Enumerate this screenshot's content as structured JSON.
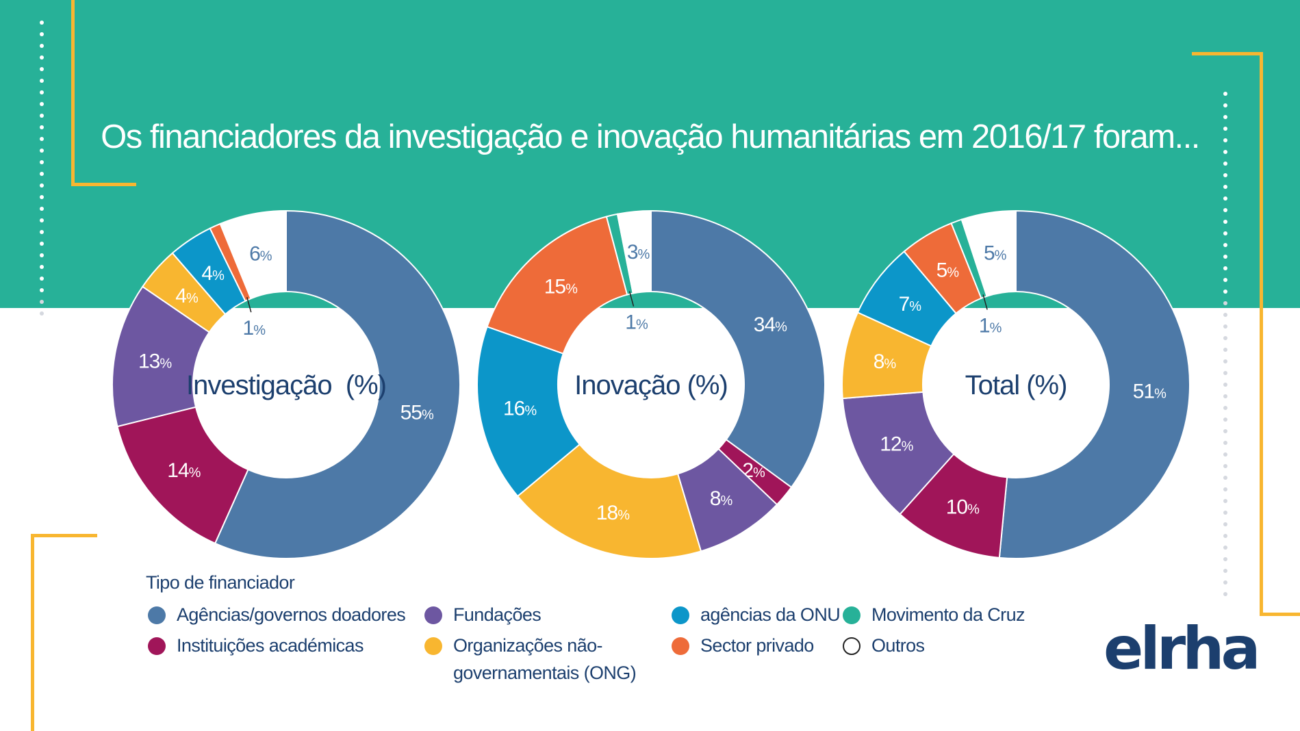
{
  "title": "Os financiadores da investigação e inovação humanitárias em 2016/17 foram...",
  "colors": {
    "banner": "#27b198",
    "accent_yellow": "#f8b630",
    "text_navy": "#1c3f6e"
  },
  "legend": {
    "title": "Tipo de financiador",
    "items": [
      {
        "label": "Agências/governos doadores",
        "color": "#4d79a7"
      },
      {
        "label": "Fundações",
        "color": "#6d57a1"
      },
      {
        "label": "agências da ONU",
        "color": "#0c96c9"
      },
      {
        "label": "Movimento da Cruz",
        "color": "#27b198"
      },
      {
        "label": "Instituições académicas",
        "color": "#a01559"
      },
      {
        "label": "Organizações não-",
        "label_line2": "governamentais (ONG)",
        "color": "#f8b630"
      },
      {
        "label": "Sector privado",
        "color": "#ee6b39"
      },
      {
        "label": "Outros",
        "color": "#ffffff"
      }
    ]
  },
  "logo": "elrha",
  "chart_data": [
    {
      "type": "pie",
      "title": "Investigação  (%)",
      "unit": "%",
      "categories": [
        "Agências/governos doadores",
        "Instituições académicas",
        "Fundações",
        "Organizações não-governamentais (ONG)",
        "agências da ONU",
        "Sector privado",
        "Movimento da Cruz",
        "Outros"
      ],
      "values": [
        55,
        14,
        13,
        4,
        4,
        1,
        0,
        6
      ],
      "colors": [
        "#4d79a7",
        "#a01559",
        "#6d57a1",
        "#f8b630",
        "#0c96c9",
        "#ee6b39",
        "#27b198",
        "#ffffff"
      ],
      "labels": [
        "55",
        "14",
        "13",
        "4",
        "4",
        "1",
        "",
        "6"
      ]
    },
    {
      "type": "pie",
      "title": "Inovação (%)",
      "unit": "%",
      "categories": [
        "Agências/governos doadores",
        "Instituições académicas",
        "Fundações",
        "Organizações não-governamentais (ONG)",
        "agências da ONU",
        "Sector privado",
        "Movimento da Cruz",
        "Outros"
      ],
      "values": [
        34,
        2,
        8,
        18,
        16,
        15,
        1,
        3
      ],
      "colors": [
        "#4d79a7",
        "#a01559",
        "#6d57a1",
        "#f8b630",
        "#0c96c9",
        "#ee6b39",
        "#27b198",
        "#ffffff"
      ],
      "labels": [
        "34",
        "2",
        "8",
        "18",
        "16",
        "15",
        "1",
        "3"
      ]
    },
    {
      "type": "pie",
      "title": "Total (%)",
      "unit": "%",
      "categories": [
        "Agências/governos doadores",
        "Instituições académicas",
        "Fundações",
        "Organizações não-governamentais (ONG)",
        "agências da ONU",
        "Sector privado",
        "Movimento da Cruz",
        "Outros"
      ],
      "values": [
        51,
        10,
        12,
        8,
        7,
        5,
        1,
        5
      ],
      "colors": [
        "#4d79a7",
        "#a01559",
        "#6d57a1",
        "#f8b630",
        "#0c96c9",
        "#ee6b39",
        "#27b198",
        "#ffffff"
      ],
      "labels": [
        "51",
        "10",
        "12",
        "8",
        "7",
        "5",
        "1",
        "5"
      ]
    }
  ]
}
